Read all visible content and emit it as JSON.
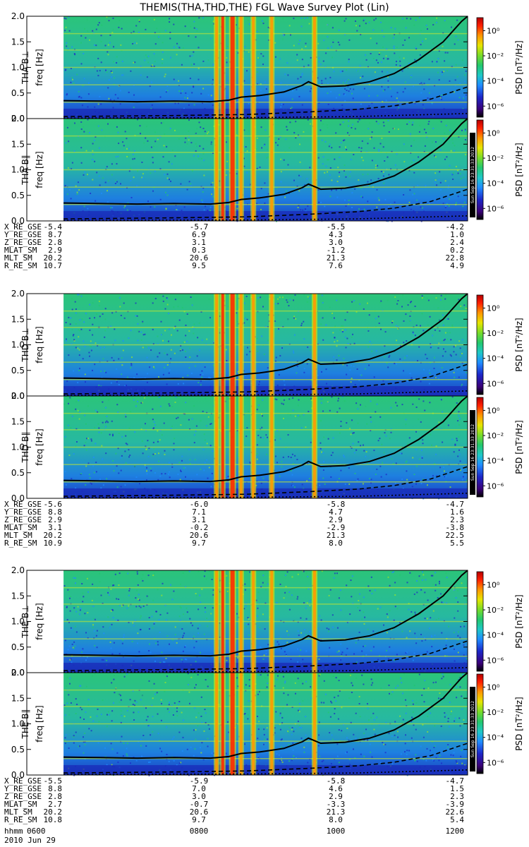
{
  "title": "THEMIS(THA,THD,THE) FGL Wave Survey Plot (Lin)",
  "time_axis": {
    "label": "hhmm",
    "date": "2010 Jun 29",
    "ticks": [
      "0600",
      "0800",
      "1000",
      "1200"
    ]
  },
  "colorbar": {
    "label": "PSD [nT²/Hz]",
    "ticks": [
      "10⁰",
      "10⁻²",
      "10⁻⁴",
      "10⁻⁶"
    ],
    "colors": [
      "#000000",
      "#3a0078",
      "#1c26c8",
      "#1e8cff",
      "#1ec8c8",
      "#22c86e",
      "#78dc28",
      "#e6e600",
      "#ff9600",
      "#ff1e00",
      "#b40000"
    ]
  },
  "stamp": "Sun Sep 16 23:31:33 2012",
  "ephemeris_labels": [
    "X_RE_GSE",
    "Y_RE_GSE",
    "Z_RE_GSE",
    "MLAT_SM",
    "MLT_SM",
    "R_RE_SM"
  ],
  "probes": [
    {
      "panels": [
        {
          "label": "THA B⊥",
          "ylabel": "freq [Hz]"
        },
        {
          "label": "THA B∥",
          "ylabel": "freq [Hz]"
        }
      ],
      "ephemeris": [
        [
          "-5.4",
          "-5.7",
          "-5.5",
          "-4.2"
        ],
        [
          "8.7",
          "6.9",
          "4.3",
          "1.0"
        ],
        [
          "2.8",
          "3.1",
          "3.0",
          "2.4"
        ],
        [
          "2.9",
          "0.3",
          "-1.2",
          "0.2"
        ],
        [
          "20.2",
          "20.6",
          "21.3",
          "22.8"
        ],
        [
          "10.7",
          "9.5",
          "7.6",
          "4.9"
        ]
      ]
    },
    {
      "panels": [
        {
          "label": "THD B⊥",
          "ylabel": "freq [Hz]"
        },
        {
          "label": "THD B∥",
          "ylabel": "freq [Hz]"
        }
      ],
      "ephemeris": [
        [
          "-5.6",
          "-6.0",
          "-5.8",
          "-4.7"
        ],
        [
          "8.8",
          "7.1",
          "4.7",
          "1.6"
        ],
        [
          "2.9",
          "3.1",
          "2.9",
          "2.3"
        ],
        [
          "3.1",
          "-0.2",
          "-2.9",
          "-3.8"
        ],
        [
          "20.2",
          "20.6",
          "21.3",
          "22.5"
        ],
        [
          "10.9",
          "9.7",
          "8.0",
          "5.5"
        ]
      ]
    },
    {
      "panels": [
        {
          "label": "THE B⊥",
          "ylabel": "freq [Hz]"
        },
        {
          "label": "THE B∥",
          "ylabel": "freq [Hz]"
        }
      ],
      "ephemeris": [
        [
          "-5.5",
          "-5.9",
          "-5.8",
          "-4.7"
        ],
        [
          "8.8",
          "7.0",
          "4.6",
          "1.5"
        ],
        [
          "2.8",
          "3.0",
          "2.9",
          "2.3"
        ],
        [
          "2.7",
          "-0.7",
          "-3.3",
          "-3.9"
        ],
        [
          "20.2",
          "20.6",
          "21.3",
          "22.6"
        ],
        [
          "10.8",
          "9.7",
          "8.0",
          "5.4"
        ]
      ]
    }
  ],
  "chart_data": {
    "type": "heatmap",
    "title": "THEMIS(THA,THD,THE) FGL Wave Survey Plot (Lin)",
    "xlabel": "hhmm",
    "ylabel": "freq [Hz]",
    "x_range": [
      "0600",
      "1200"
    ],
    "x_ticks": [
      "0600",
      "0800",
      "1000",
      "1200"
    ],
    "ylim": [
      0,
      2.0
    ],
    "y_ticks": [
      0.0,
      0.5,
      1.0,
      1.5,
      2.0
    ],
    "data_start": "0630",
    "colorbar_range": [
      "1e-6",
      "1e0"
    ],
    "curves": [
      {
        "style": "solid",
        "points": [
          [
            "0630",
            0.35
          ],
          [
            "0700",
            0.34
          ],
          [
            "0730",
            0.33
          ],
          [
            "0800",
            0.34
          ],
          [
            "0830",
            0.33
          ],
          [
            "0845",
            0.36
          ],
          [
            "0855",
            0.42
          ],
          [
            "0910",
            0.45
          ],
          [
            "0930",
            0.52
          ],
          [
            "0945",
            0.65
          ],
          [
            "0950",
            0.72
          ],
          [
            "1000",
            0.62
          ],
          [
            "1020",
            0.64
          ],
          [
            "1040",
            0.72
          ],
          [
            "1100",
            0.88
          ],
          [
            "1120",
            1.15
          ],
          [
            "1140",
            1.5
          ],
          [
            "1155",
            1.9
          ],
          [
            "1200",
            2.0
          ]
        ]
      },
      {
        "style": "dashed",
        "points": [
          [
            "0630",
            0.04
          ],
          [
            "0800",
            0.06
          ],
          [
            "0900",
            0.08
          ],
          [
            "0950",
            0.13
          ],
          [
            "1030",
            0.18
          ],
          [
            "1100",
            0.25
          ],
          [
            "1130",
            0.38
          ],
          [
            "1200",
            0.62
          ]
        ]
      },
      {
        "style": "dotted",
        "points": [
          [
            "0630",
            0.01
          ],
          [
            "0900",
            0.02
          ],
          [
            "1030",
            0.04
          ],
          [
            "1200",
            0.1
          ]
        ]
      }
    ],
    "wave_bursts_approx": [
      "0835",
      "0840",
      "0848",
      "0855",
      "0905",
      "0920",
      "0955"
    ]
  }
}
